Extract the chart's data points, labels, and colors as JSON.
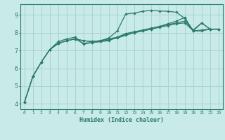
{
  "bg_color": "#c8eae8",
  "grid_color": "#a8d4d0",
  "line_color": "#2d7a6e",
  "xlabel": "Humidex (Indice chaleur)",
  "xlim": [
    -0.5,
    23.5
  ],
  "ylim": [
    3.7,
    9.6
  ],
  "yticks": [
    4,
    5,
    6,
    7,
    8,
    9
  ],
  "xticks": [
    0,
    1,
    2,
    3,
    4,
    5,
    6,
    7,
    8,
    9,
    10,
    11,
    12,
    13,
    14,
    15,
    16,
    17,
    18,
    19,
    20,
    21,
    22,
    23
  ],
  "series": [
    {
      "x": [
        0,
        1,
        2,
        3,
        4,
        5,
        6,
        7,
        8,
        9,
        10,
        11,
        12,
        13,
        14,
        15,
        16,
        17,
        18,
        19,
        20,
        21,
        22,
        23
      ],
      "y": [
        4.1,
        5.55,
        6.35,
        7.05,
        7.4,
        7.55,
        7.65,
        7.55,
        7.5,
        7.55,
        7.65,
        7.75,
        7.9,
        8.0,
        8.1,
        8.2,
        8.3,
        8.4,
        8.5,
        8.55,
        8.1,
        8.15,
        8.2,
        8.2
      ]
    },
    {
      "x": [
        0,
        1,
        2,
        3,
        4,
        5,
        6,
        7,
        8,
        9,
        10,
        11,
        12,
        13,
        14,
        15,
        16,
        17,
        18,
        19,
        20,
        21,
        22,
        23
      ],
      "y": [
        4.1,
        5.55,
        6.35,
        7.05,
        7.4,
        7.55,
        7.65,
        7.55,
        7.5,
        7.55,
        7.7,
        8.1,
        9.05,
        9.1,
        9.2,
        9.25,
        9.22,
        9.2,
        9.15,
        8.8,
        8.1,
        8.55,
        8.2,
        8.2
      ]
    },
    {
      "x": [
        3,
        4,
        5,
        6,
        7,
        8,
        9,
        10,
        11,
        12,
        13,
        14,
        15,
        16,
        17,
        18,
        19,
        20,
        21,
        22,
        23
      ],
      "y": [
        7.05,
        7.5,
        7.65,
        7.75,
        7.35,
        7.45,
        7.5,
        7.55,
        7.75,
        7.95,
        8.05,
        8.15,
        8.25,
        8.35,
        8.45,
        8.55,
        8.65,
        8.15,
        8.55,
        8.2,
        8.2
      ]
    },
    {
      "x": [
        0,
        1,
        2,
        3,
        4,
        5,
        6,
        7,
        8,
        9,
        10,
        11,
        12,
        13,
        14,
        15,
        16,
        17,
        18,
        19,
        20,
        21,
        22,
        23
      ],
      "y": [
        4.1,
        5.55,
        6.35,
        7.05,
        7.4,
        7.55,
        7.65,
        7.4,
        7.45,
        7.5,
        7.6,
        7.7,
        7.85,
        8.0,
        8.1,
        8.2,
        8.35,
        8.5,
        8.65,
        8.85,
        8.1,
        8.1,
        8.2,
        8.2
      ]
    }
  ]
}
